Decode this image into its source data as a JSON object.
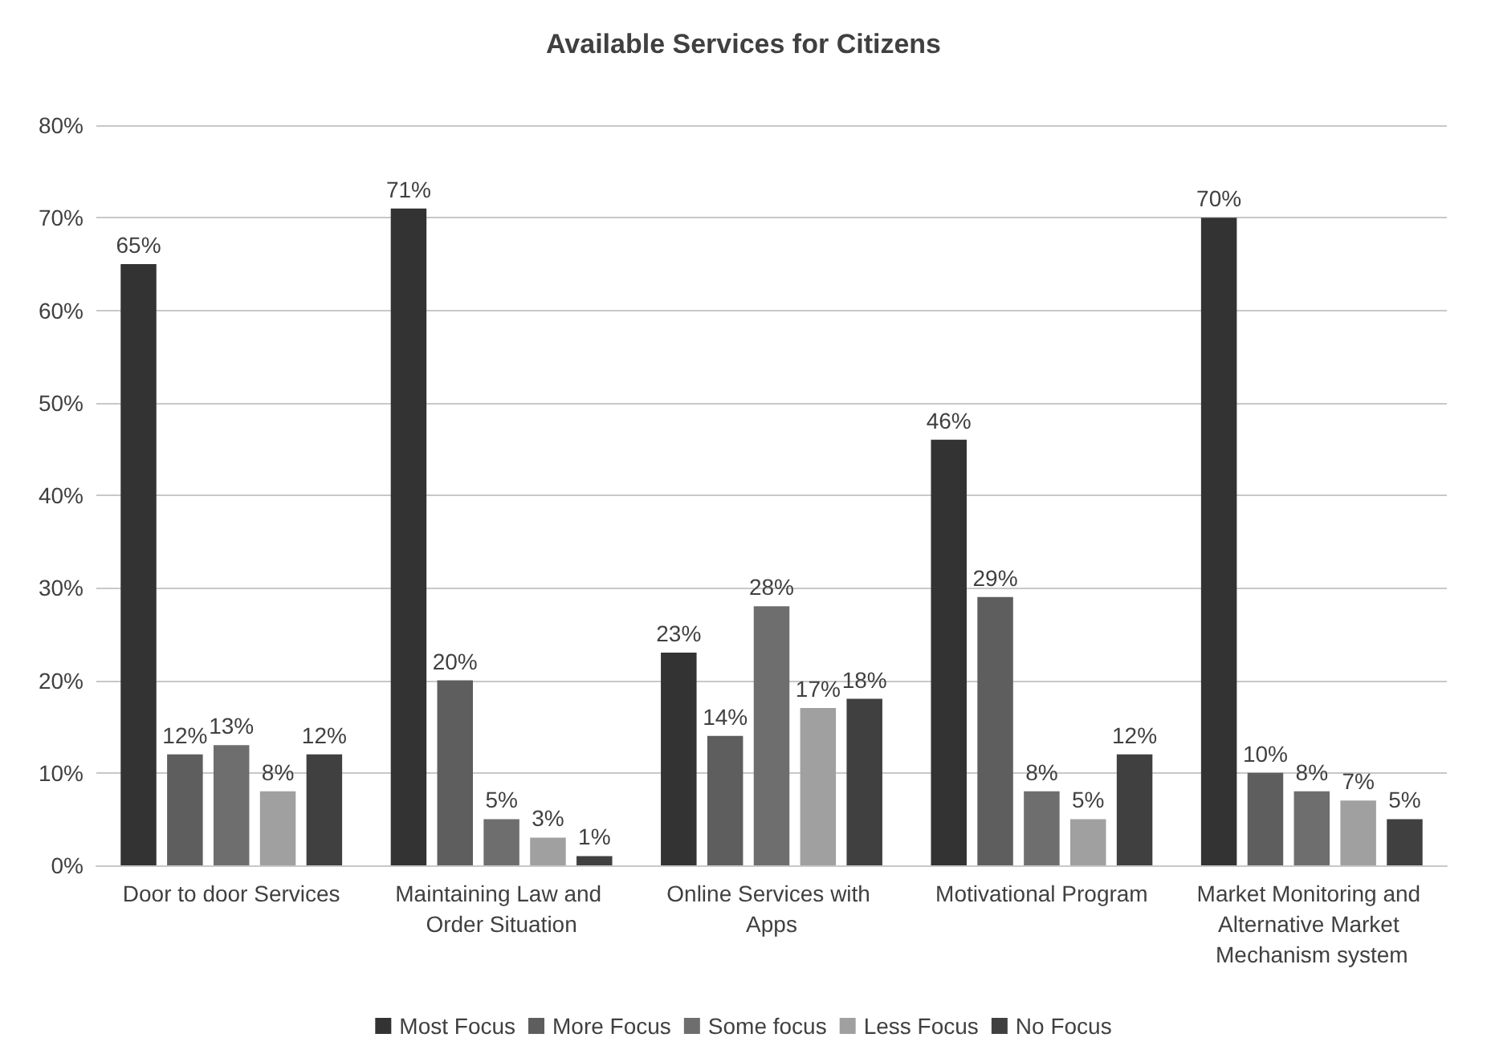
{
  "chart_data": {
    "type": "bar",
    "title": "Available Services for Citizens",
    "categories": [
      "Door to door Services",
      "Maintaining Law and Order Situation",
      "Online Services with Apps",
      "Motivational Program",
      "Market Monitoring and Alternative Market Mechanism system"
    ],
    "series": [
      {
        "name": "Most Focus",
        "color": "#333333",
        "values": [
          65,
          71,
          23,
          46,
          70
        ],
        "value_labels": [
          "65%",
          "71%",
          "23%",
          "46%",
          "70%"
        ]
      },
      {
        "name": "More Focus",
        "color": "#5e5e5e",
        "values": [
          12,
          20,
          14,
          29,
          10
        ],
        "value_labels": [
          "12%",
          "20%",
          "14%",
          "29%",
          "10%"
        ]
      },
      {
        "name": "Some focus",
        "color": "#6e6e6e",
        "values": [
          13,
          5,
          28,
          8,
          8
        ],
        "value_labels": [
          "13%",
          "5%",
          "28%",
          "8%",
          "8%"
        ]
      },
      {
        "name": "Less Focus",
        "color": "#a0a0a0",
        "values": [
          8,
          3,
          17,
          5,
          7
        ],
        "value_labels": [
          "8%",
          "3%",
          "17%",
          "5%",
          "7%"
        ]
      },
      {
        "name": "No Focus",
        "color": "#404040",
        "values": [
          12,
          1,
          18,
          12,
          5
        ],
        "value_labels": [
          "12%",
          "1%",
          "18%",
          "12%",
          "5%"
        ]
      }
    ],
    "ylim": [
      0,
      80
    ],
    "yticks": [
      {
        "value": 0,
        "label": "0%"
      },
      {
        "value": 10,
        "label": "10%"
      },
      {
        "value": 20,
        "label": "20%"
      },
      {
        "value": 30,
        "label": "30%"
      },
      {
        "value": 40,
        "label": "40%"
      },
      {
        "value": 50,
        "label": "50%"
      },
      {
        "value": 60,
        "label": "60%"
      },
      {
        "value": 70,
        "label": "70%"
      },
      {
        "value": 80,
        "label": "80%"
      }
    ],
    "grid": "y",
    "legend": "bottom"
  }
}
